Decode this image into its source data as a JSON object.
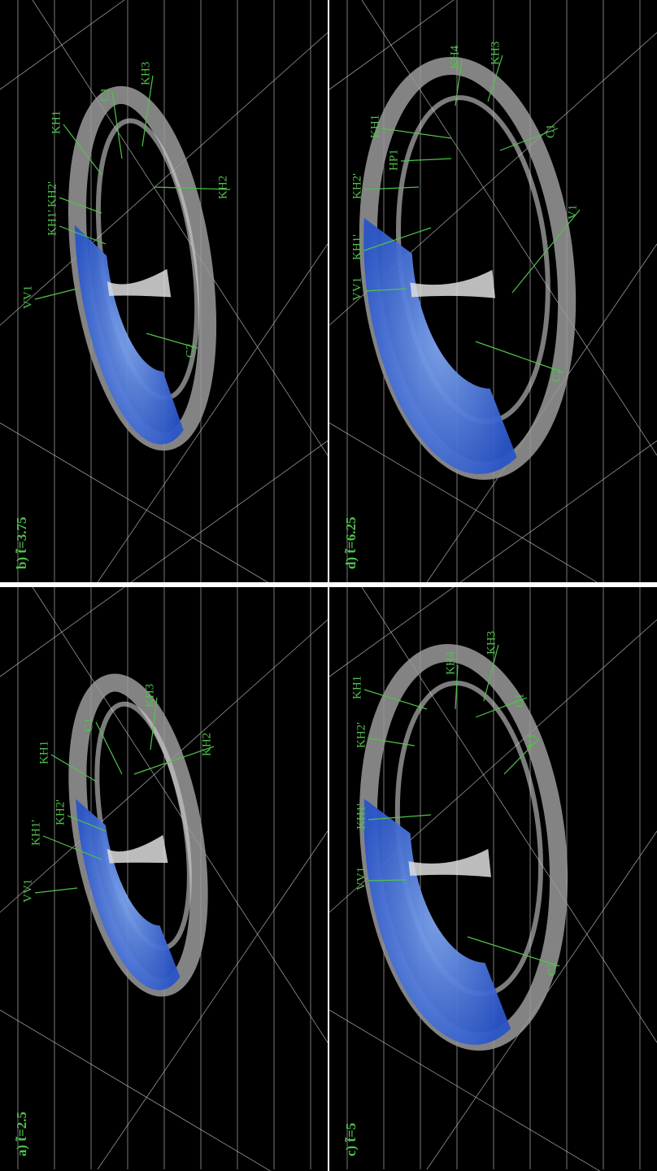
{
  "panels": [
    {
      "title": "b) t̃=3.75",
      "labels": [
        "VV1",
        "KH1'",
        "KH2'",
        "KH1",
        "C1",
        "KH3",
        "KH2",
        "C2"
      ]
    },
    {
      "title": "a) t̃=2.5",
      "labels": [
        "VV1",
        "KH1'",
        "KH2'",
        "KH1",
        "C1",
        "KH3",
        "KH2"
      ]
    },
    {
      "title": "d) t̃=6.25",
      "labels": [
        "VV1",
        "KH1'",
        "KH2'",
        "HP1",
        "KH1",
        "KH4",
        "KH3",
        "C1",
        "V1",
        "C2"
      ]
    },
    {
      "title": "c) t̃=5",
      "labels": [
        "VV1",
        "KH1'",
        "KH2'",
        "KH1",
        "KH4",
        "KH3",
        "C1",
        "V1",
        "C2"
      ]
    }
  ]
}
